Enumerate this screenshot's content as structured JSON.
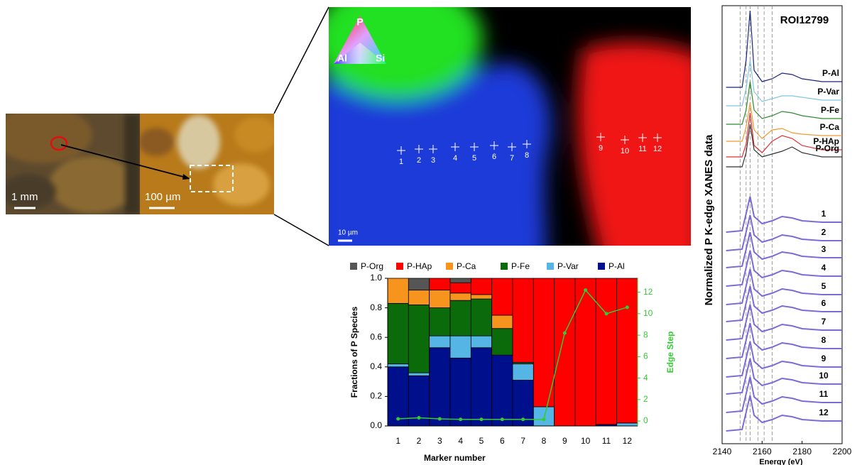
{
  "micrograph": {
    "scale_1": "1 mm",
    "scale_2": "100 µm"
  },
  "map": {
    "ternary": [
      "P",
      "Al",
      "Si"
    ],
    "scale": "10 µm",
    "markers": [
      "1",
      "2",
      "3",
      "4",
      "5",
      "6",
      "7",
      "8",
      "9",
      "10",
      "11",
      "12"
    ]
  },
  "chart_data": [
    {
      "type": "stacked_bar",
      "xlabel": "Marker number",
      "ylabel": "Fractions of P Species",
      "y2label": "Edge Step",
      "categories": [
        "1",
        "2",
        "3",
        "4",
        "5",
        "6",
        "7",
        "8",
        "9",
        "10",
        "11",
        "12"
      ],
      "series": [
        {
          "name": "P-Org",
          "color": "#555555",
          "values": [
            0,
            0.08,
            0,
            0.03,
            0,
            0,
            0,
            0,
            0,
            0,
            0,
            0
          ]
        },
        {
          "name": "P-HAp",
          "color": "#ff0000",
          "values": [
            0,
            0,
            0.08,
            0.07,
            0.11,
            0.25,
            0.57,
            0.87,
            1.0,
            1.0,
            0.99,
            0.98
          ]
        },
        {
          "name": "P-Ca",
          "color": "#f7941d",
          "values": [
            0.17,
            0.1,
            0.12,
            0.05,
            0.03,
            0.09,
            0,
            0,
            0,
            0,
            0,
            0
          ]
        },
        {
          "name": "P-Fe",
          "color": "#0b6b0b",
          "values": [
            0.41,
            0.46,
            0.19,
            0.24,
            0.25,
            0.18,
            0.01,
            0,
            0,
            0,
            0,
            0
          ]
        },
        {
          "name": "P-Var",
          "color": "#55b5e5",
          "values": [
            0.02,
            0.02,
            0.08,
            0.15,
            0.08,
            0,
            0.11,
            0.13,
            0,
            0,
            0,
            0.02
          ]
        },
        {
          "name": "P-Al",
          "color": "#000f8c",
          "values": [
            0.4,
            0.34,
            0.53,
            0.46,
            0.53,
            0.48,
            0.31,
            0,
            0,
            0,
            0.01,
            0
          ]
        }
      ],
      "edge_step": {
        "color": "#33cc33",
        "axis": "y2",
        "values": [
          0.2,
          0.3,
          0.2,
          0.15,
          0.15,
          0.15,
          0.15,
          0.15,
          8.2,
          12.2,
          10,
          10.6
        ]
      },
      "ylim": [
        0,
        1
      ],
      "yticks": [
        {
          "value": 0,
          "label": "0.0"
        },
        {
          "value": 0.2,
          "label": "0.2"
        },
        {
          "value": 0.4,
          "label": "0.4"
        },
        {
          "value": 0.6,
          "label": "0.6"
        },
        {
          "value": 0.8,
          "label": "0.8"
        },
        {
          "value": 1,
          "label": "1.0"
        }
      ],
      "y2lim": [
        -0.46,
        13.3
      ],
      "y2ticks": [
        0,
        2,
        4,
        6,
        8,
        10,
        12
      ],
      "legend": "top"
    },
    {
      "type": "line",
      "title": "ROI12799",
      "xlabel": "Energy (eV)",
      "ylabel": "Normalized P K-edge XANES data",
      "x": [
        2142,
        2150,
        2152,
        2154,
        2156,
        2160,
        2165,
        2170,
        2175,
        2180,
        2190,
        2200
      ],
      "xlim": [
        2140,
        2200
      ],
      "xticks": [
        2140,
        2160,
        2180,
        2200
      ],
      "ylim": [
        -0.5,
        30.35
      ],
      "reference_lines": [
        2149,
        2152,
        2154,
        2158,
        2161,
        2165
      ],
      "series": [
        {
          "name": "P-Al",
          "color": "#1a237e",
          "values": [
            24.6,
            24.6,
            26.5,
            30.0,
            25.8,
            25.0,
            25.2,
            25.6,
            25.5,
            25.2,
            25.0,
            25.0
          ]
        },
        {
          "name": "P-Var",
          "color": "#7ec8e3",
          "values": [
            23.3,
            23.3,
            24.5,
            26.5,
            24.3,
            23.6,
            23.8,
            24.0,
            24.0,
            23.9,
            23.7,
            23.7
          ]
        },
        {
          "name": "P-Fe",
          "color": "#2e8b2e",
          "values": [
            22.0,
            22.0,
            23.0,
            25.0,
            23.0,
            22.4,
            22.6,
            22.9,
            22.8,
            22.6,
            22.4,
            22.4
          ]
        },
        {
          "name": "P-Ca",
          "color": "#f29b2c",
          "values": [
            20.8,
            20.8,
            21.8,
            23.5,
            21.6,
            21.0,
            21.6,
            21.7,
            21.4,
            21.3,
            21.2,
            21.2
          ]
        },
        {
          "name": "P-HAp",
          "color": "#e03030",
          "values": [
            19.7,
            19.7,
            20.6,
            22.8,
            20.5,
            20.0,
            20.8,
            21.2,
            21.0,
            20.5,
            20.2,
            20.2
          ]
        },
        {
          "name": "P-Org",
          "color": "#333333",
          "values": [
            19.0,
            19.0,
            20.0,
            22.0,
            20.2,
            19.7,
            19.9,
            20.1,
            20.4,
            20.0,
            19.7,
            19.7
          ]
        },
        {
          "name": "1",
          "color": "#7b6bd6",
          "values": [
            14.4,
            14.5,
            15.7,
            16.9,
            15.5,
            15.0,
            15.2,
            15.5,
            15.4,
            15.2,
            15.1,
            15.1
          ]
        },
        {
          "name": "2",
          "color": "#7b6bd6",
          "values": [
            13.1,
            13.2,
            14.4,
            15.6,
            14.2,
            13.7,
            13.9,
            14.2,
            14.1,
            13.9,
            13.8,
            13.8
          ]
        },
        {
          "name": "3",
          "color": "#7b6bd6",
          "values": [
            11.9,
            12.0,
            13.2,
            14.4,
            13.0,
            12.5,
            12.7,
            13.0,
            12.9,
            12.7,
            12.6,
            12.6
          ]
        },
        {
          "name": "4",
          "color": "#7b6bd6",
          "values": [
            10.6,
            10.7,
            11.9,
            13.1,
            11.7,
            11.2,
            11.4,
            11.7,
            11.6,
            11.4,
            11.3,
            11.3
          ]
        },
        {
          "name": "5",
          "color": "#7b6bd6",
          "values": [
            9.3,
            9.4,
            10.6,
            11.8,
            10.4,
            9.9,
            10.1,
            10.4,
            10.3,
            10.1,
            10.0,
            10.0
          ]
        },
        {
          "name": "6",
          "color": "#7b6bd6",
          "values": [
            8.1,
            8.2,
            9.4,
            10.6,
            9.2,
            8.7,
            8.9,
            9.2,
            9.1,
            8.9,
            8.8,
            8.8
          ]
        },
        {
          "name": "7",
          "color": "#7b6bd6",
          "values": [
            6.8,
            6.9,
            8.1,
            9.3,
            7.9,
            7.4,
            7.6,
            7.9,
            7.8,
            7.6,
            7.5,
            7.5
          ]
        },
        {
          "name": "8",
          "color": "#7b6bd6",
          "values": [
            5.5,
            5.6,
            6.8,
            8.0,
            6.6,
            6.1,
            6.3,
            6.6,
            6.5,
            6.3,
            6.2,
            6.2
          ]
        },
        {
          "name": "9",
          "color": "#7b6bd6",
          "values": [
            4.2,
            4.3,
            5.5,
            6.7,
            5.3,
            4.8,
            5.0,
            5.3,
            5.2,
            5.0,
            4.9,
            4.9
          ]
        },
        {
          "name": "10",
          "color": "#7b6bd6",
          "values": [
            3.0,
            3.1,
            4.3,
            5.5,
            4.1,
            3.6,
            3.8,
            4.1,
            4.0,
            3.8,
            3.7,
            3.7
          ]
        },
        {
          "name": "11",
          "color": "#7b6bd6",
          "values": [
            1.7,
            1.8,
            3.0,
            4.2,
            2.8,
            2.3,
            2.5,
            2.8,
            2.7,
            2.5,
            2.4,
            2.4
          ]
        },
        {
          "name": "12",
          "color": "#7b6bd6",
          "values": [
            0.4,
            0.5,
            1.7,
            2.9,
            1.5,
            1.0,
            1.2,
            1.5,
            1.4,
            1.2,
            1.1,
            1.1
          ]
        }
      ]
    }
  ]
}
